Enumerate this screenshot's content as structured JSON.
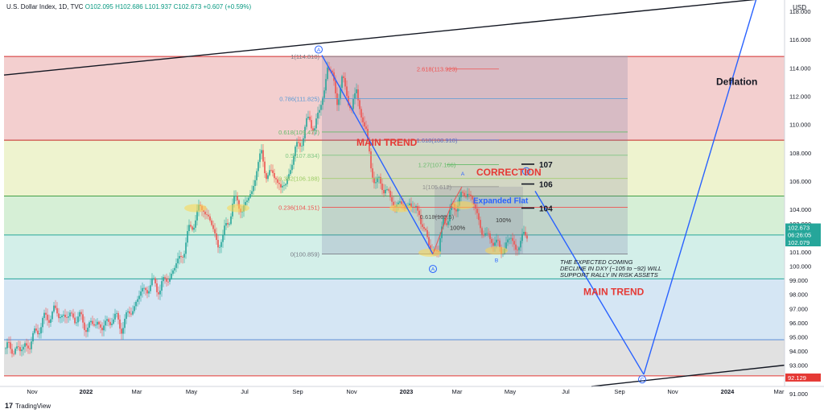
{
  "header": {
    "symbol": "U.S. Dollar Index, 1D, TVC",
    "open": "O102.095",
    "high": "H102.686",
    "low": "L101.937",
    "close": "C102.673",
    "change": "+0.607 (+0.59%)"
  },
  "currency": "USD",
  "brand": {
    "logo_glyph": "17",
    "name": "TradingView"
  },
  "colors": {
    "up": "#26a69a",
    "down": "#ef5350",
    "trend_line": "#2962ff",
    "annotation_red": "#e53935",
    "price_tag": "#26a69a",
    "low_tag": "#e53935"
  },
  "chart_data": {
    "type": "candlestick",
    "x_ticks": [
      "Nov",
      "2022",
      "Mar",
      "May",
      "Jul",
      "Sep",
      "Nov",
      "2023",
      "Mar",
      "May",
      "Jul",
      "Sep",
      "Nov",
      "2024",
      "Mar"
    ],
    "y_ticks": [
      "118.000",
      "116.000",
      "114.000",
      "112.000",
      "110.000",
      "108.000",
      "106.000",
      "104.000",
      "103.000",
      "101.000",
      "100.000",
      "99.000",
      "98.000",
      "97.000",
      "96.000",
      "95.000",
      "94.000",
      "93.000",
      "91.000"
    ],
    "ylim": [
      91.5,
      118.8
    ],
    "price_labels": {
      "last": "102.673",
      "countdown": "06:26:05",
      "prev": "102.079",
      "low": "92.129"
    },
    "fib_levels": [
      {
        "label": "1(114.810)",
        "value": 114.81
      },
      {
        "label": "0.786(111.825)",
        "value": 111.825
      },
      {
        "label": "0.618(109.477)",
        "value": 109.477
      },
      {
        "label": "0.5(107.834)",
        "value": 107.834
      },
      {
        "label": "0.382(106.188)",
        "value": 106.188
      },
      {
        "label": "0.236(104.151)",
        "value": 104.151
      },
      {
        "label": "0(100.859)",
        "value": 100.859
      }
    ],
    "fib_extensions": [
      {
        "label": "2.618(113.923)",
        "value": 113.923
      },
      {
        "label": "1.618(108.910)",
        "value": 108.91
      },
      {
        "label": "1.27(107.166)",
        "value": 107.166
      },
      {
        "label": "1(105.612)",
        "value": 105.612
      },
      {
        "label": "0.618(103.5)",
        "value": 103.5
      }
    ],
    "targets": [
      {
        "label": "107",
        "value": 107.2
      },
      {
        "label": "106",
        "value": 105.8
      },
      {
        "label": "104",
        "value": 104.1
      }
    ],
    "wave_labels": [
      {
        "label": "A",
        "text": "A"
      },
      {
        "label": "B",
        "text": "B"
      }
    ],
    "annotations": {
      "main_trend_1": "MAIN TREND",
      "correction": "CORRECTION",
      "expanded_flat": "Expanded Flat",
      "pct_100_a": "100%",
      "pct_100_b": "100%",
      "expectation": "THE EXPECTED COMING DECLINE IN DXY (~105 to ~92) WILL SUPPORT RALLY IN RISK ASSETS",
      "main_trend_2": "MAIN TREND",
      "deflation": "Deflation"
    },
    "price_path": [
      [
        0,
        94.2
      ],
      [
        6,
        94.0
      ],
      [
        12,
        94.4
      ],
      [
        18,
        93.8
      ],
      [
        24,
        94.6
      ],
      [
        30,
        94.3
      ],
      [
        36,
        95.2
      ],
      [
        42,
        95.8
      ],
      [
        48,
        96.1
      ],
      [
        54,
        96.5
      ],
      [
        60,
        96.9
      ],
      [
        66,
        96.4
      ],
      [
        72,
        96.7
      ],
      [
        78,
        96.2
      ],
      [
        84,
        96.6
      ],
      [
        90,
        96.3
      ],
      [
        96,
        96.0
      ],
      [
        102,
        95.8
      ],
      [
        108,
        95.7
      ],
      [
        114,
        96.2
      ],
      [
        120,
        95.5
      ],
      [
        126,
        96.0
      ],
      [
        132,
        96.4
      ],
      [
        138,
        96.1
      ],
      [
        144,
        95.8
      ],
      [
        150,
        96.3
      ],
      [
        156,
        96.8
      ],
      [
        162,
        97.5
      ],
      [
        168,
        98.0
      ],
      [
        174,
        98.6
      ],
      [
        180,
        98.4
      ],
      [
        186,
        98.9
      ],
      [
        192,
        98.3
      ],
      [
        198,
        99.0
      ],
      [
        204,
        99.3
      ],
      [
        210,
        99.8
      ],
      [
        216,
        100.6
      ],
      [
        222,
        101.2
      ],
      [
        228,
        102.4
      ],
      [
        234,
        103.3
      ],
      [
        240,
        103.8
      ],
      [
        246,
        104.2
      ],
      [
        252,
        103.4
      ],
      [
        258,
        102.5
      ],
      [
        264,
        101.6
      ],
      [
        270,
        101.9
      ],
      [
        276,
        103.2
      ],
      [
        282,
        104.3
      ],
      [
        288,
        104.6
      ],
      [
        294,
        104.0
      ],
      [
        300,
        104.5
      ],
      [
        306,
        105.3
      ],
      [
        312,
        106.9
      ],
      [
        318,
        107.8
      ],
      [
        324,
        106.7
      ],
      [
        330,
        106.2
      ],
      [
        336,
        106.6
      ],
      [
        342,
        105.3
      ],
      [
        348,
        105.8
      ],
      [
        354,
        107.0
      ],
      [
        360,
        108.1
      ],
      [
        366,
        108.8
      ],
      [
        372,
        109.6
      ],
      [
        378,
        110.4
      ],
      [
        384,
        109.8
      ],
      [
        390,
        110.9
      ],
      [
        396,
        112.5
      ],
      [
        400,
        114.2
      ],
      [
        406,
        113.3
      ],
      [
        412,
        111.9
      ],
      [
        418,
        112.9
      ],
      [
        424,
        112.4
      ],
      [
        430,
        110.9
      ],
      [
        436,
        112.5
      ],
      [
        442,
        110.6
      ],
      [
        448,
        109.6
      ],
      [
        454,
        106.9
      ],
      [
        460,
        106.1
      ],
      [
        466,
        105.5
      ],
      [
        472,
        105.8
      ],
      [
        478,
        104.5
      ],
      [
        484,
        104.4
      ],
      [
        490,
        104.6
      ],
      [
        496,
        103.8
      ],
      [
        502,
        104.9
      ],
      [
        508,
        103.6
      ],
      [
        514,
        104.1
      ],
      [
        520,
        102.3
      ],
      [
        526,
        101.6
      ],
      [
        532,
        101.2
      ],
      [
        538,
        100.9
      ],
      [
        544,
        103.5
      ],
      [
        550,
        103.2
      ],
      [
        556,
        104.2
      ],
      [
        562,
        104.6
      ],
      [
        568,
        104.8
      ],
      [
        574,
        105.4
      ],
      [
        580,
        104.6
      ],
      [
        586,
        103.6
      ],
      [
        592,
        102.6
      ],
      [
        598,
        101.8
      ],
      [
        604,
        102.2
      ],
      [
        610,
        101.4
      ],
      [
        616,
        101.1
      ],
      [
        622,
        101.6
      ],
      [
        628,
        101.9
      ],
      [
        634,
        101.3
      ],
      [
        640,
        101.7
      ],
      [
        646,
        102.1
      ],
      [
        650,
        102.67
      ]
    ]
  }
}
